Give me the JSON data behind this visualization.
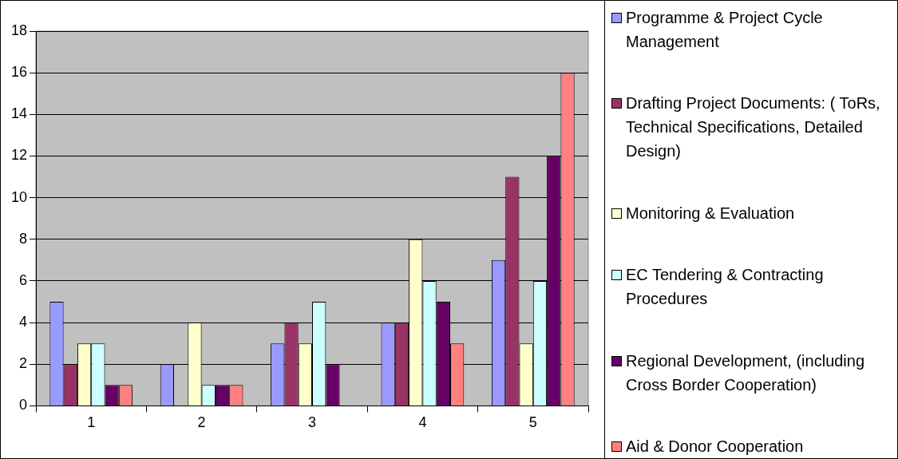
{
  "chart_data": {
    "type": "bar",
    "categories": [
      "1",
      "2",
      "3",
      "4",
      "5"
    ],
    "series": [
      {
        "name": "Programme & Project Cycle Management",
        "color": "#9999ff",
        "values": [
          5,
          2,
          3,
          4,
          7
        ]
      },
      {
        "name": "Drafting Project Documents: ( ToRs, Technical Specifications, Detailed Design)",
        "color": "#993366",
        "values": [
          2,
          0,
          4,
          4,
          11
        ]
      },
      {
        "name": "Monitoring & Evaluation",
        "color": "#ffffcc",
        "values": [
          3,
          4,
          3,
          8,
          3
        ]
      },
      {
        "name": "EC Tendering & Contracting Procedures",
        "color": "#ccffff",
        "values": [
          3,
          1,
          5,
          6,
          6
        ]
      },
      {
        "name": "Regional Development, (including Cross Border Cooperation)",
        "color": "#660066",
        "values": [
          1,
          1,
          2,
          5,
          12
        ]
      },
      {
        "name": "Aid & Donor Cooperation",
        "color": "#ff8080",
        "values": [
          1,
          1,
          0,
          3,
          16
        ]
      }
    ],
    "ylim": [
      0,
      18
    ],
    "yticks": [
      0,
      2,
      4,
      6,
      8,
      10,
      12,
      14,
      16,
      18
    ],
    "grid": "y",
    "legend": "right"
  }
}
